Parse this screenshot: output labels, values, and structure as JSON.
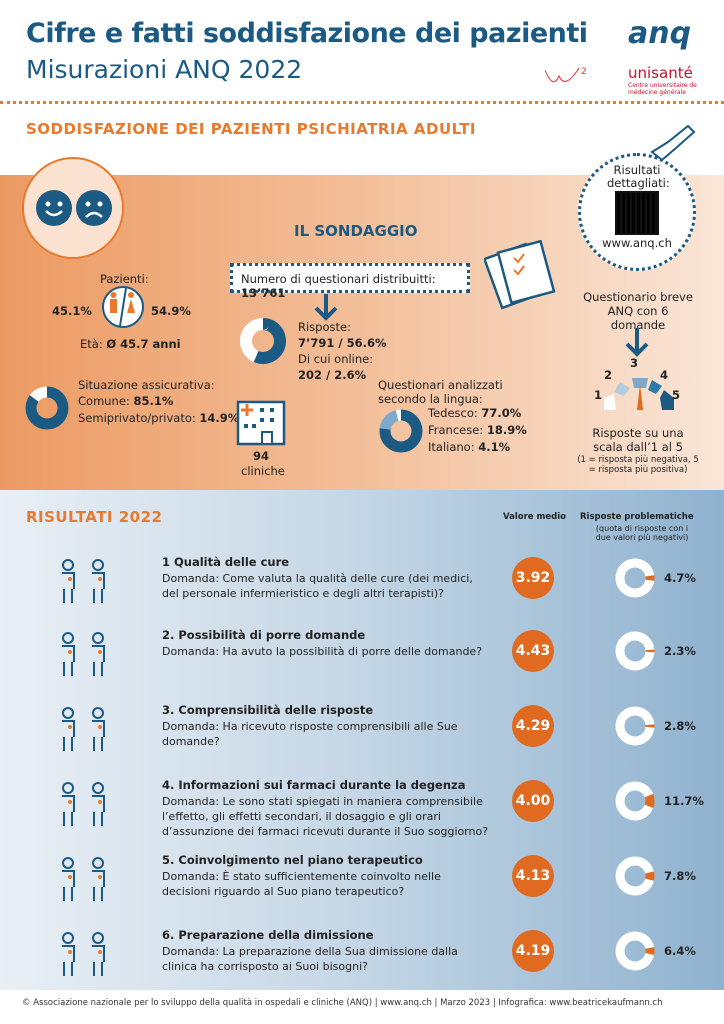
{
  "header": {
    "title": "Cifre e fatti soddisfazione dei pazienti",
    "subtitle": "Misurazioni ANQ 2022",
    "logo_anq": "anq",
    "logo_w2": "W2 Research Analysis Consulting",
    "logo_unisante": "unisanté",
    "logo_unisante_sub": "Centre universitaire de médecine générale"
  },
  "section_title": "SODDISFAZIONE DEI PAZIENTI PSICHIATRIA ADULTI",
  "qr": {
    "label": "Risultati dettagliati:",
    "url": "www.anq.ch"
  },
  "survey": {
    "title": "IL SONDAGGIO",
    "distributed_label": "Numero di questionari distribuitti:",
    "distributed_value": "13’761",
    "patients_label": "Pazienti:",
    "male_pct": "45.1%",
    "female_pct": "54.9%",
    "age_label": "Età:",
    "age_value": "Ø 45.7 anni",
    "responses_label": "Risposte:",
    "responses_value": "7’791 / 56.6%",
    "online_label": "Di cui online:",
    "online_value": "202 / 2.6%",
    "responses_donut": [
      {
        "value": 56.6,
        "color": "#1b5a82"
      },
      {
        "value": 43.4,
        "color": "#ffffff"
      }
    ],
    "insurance_label": "Situazione assicurativa:",
    "insurance_common_label": "Comune:",
    "insurance_common": "85.1%",
    "insurance_private_label": "Semiprivato/privato:",
    "insurance_private": "14.9%",
    "insurance_donut": [
      {
        "value": 85.1,
        "color": "#1b5a82"
      },
      {
        "value": 14.9,
        "color": "#ffffff"
      }
    ],
    "clinics_value": "94",
    "clinics_label": "cliniche",
    "language_label": "Questionari analizzati secondo la lingua:",
    "languages": [
      {
        "label": "Tedesco:",
        "value": "77.0%",
        "pct": 77.0,
        "color": "#1b5a82"
      },
      {
        "label": "Francese:",
        "value": "18.9%",
        "pct": 18.9,
        "color": "#7ea8cc"
      },
      {
        "label": "Italiano:",
        "value": "4.1%",
        "pct": 4.1,
        "color": "#ffffff"
      }
    ],
    "short_q": "Questionario breve ANQ con 6 domande",
    "scale": [
      "1",
      "2",
      "3",
      "4",
      "5"
    ],
    "scale_label": "Risposte su una scala dall’1 al 5",
    "scale_note": "(1 = risposta più negativa, 5 = risposta più positiva)"
  },
  "results": {
    "title": "RISULTATI 2022",
    "col_mean": "Valore medio",
    "col_problem": "Risposte problematiche",
    "col_problem_note": "(quota di risposte con i due valori più negativi)",
    "items": [
      {
        "title": "1 Qualità delle cure",
        "question": "Domanda: Come valuta la qualità delle cure (dei medici, del personale infermieristico e degli altri terapisti)?",
        "mean": "3.92",
        "problem": "4.7%",
        "problem_pct": 4.7
      },
      {
        "title": "2. Possibilità di porre domande",
        "question": "Domanda: Ha avuto la possibilità di porre delle domande?",
        "mean": "4.43",
        "problem": "2.3%",
        "problem_pct": 2.3
      },
      {
        "title": "3. Comprensibilità delle risposte",
        "question": "Domanda: Ha ricevuto risposte comprensibili alle Sue domande?",
        "mean": "4.29",
        "problem": "2.8%",
        "problem_pct": 2.8
      },
      {
        "title": "4. Informazioni sui farmaci durante la degenza",
        "question": "Domanda: Le sono stati spiegati in maniera comprensibile l’effetto, gli effetti secondari, il dosaggio e gli orari d’assunzione dei farmaci ricevuti durante il Suo soggiorno?",
        "mean": "4.00",
        "problem": "11.7%",
        "problem_pct": 11.7
      },
      {
        "title": "5. Coinvolgimento nel piano terapeutico",
        "question": "Domanda: È stato sufficientemente coinvolto nelle decisioni riguardo al Suo piano terapeutico?",
        "mean": "4.13",
        "problem": "7.8%",
        "problem_pct": 7.8
      },
      {
        "title": "6. Preparazione della dimissione",
        "question": "Domanda: La preparazione della Sua dimissione dalla clinica ha corrisposto ai Suoi bisogni?",
        "mean": "4.19",
        "problem": "6.4%",
        "problem_pct": 6.4
      }
    ]
  },
  "footer": "© Associazione nazionale per lo sviluppo della qualità in ospedali e cliniche (ANQ) | www.anq.ch | Marzo 2023 | Infografica: www.beatricekaufmann.ch",
  "colors": {
    "blue": "#1b5a82",
    "orange": "#e8792d"
  }
}
